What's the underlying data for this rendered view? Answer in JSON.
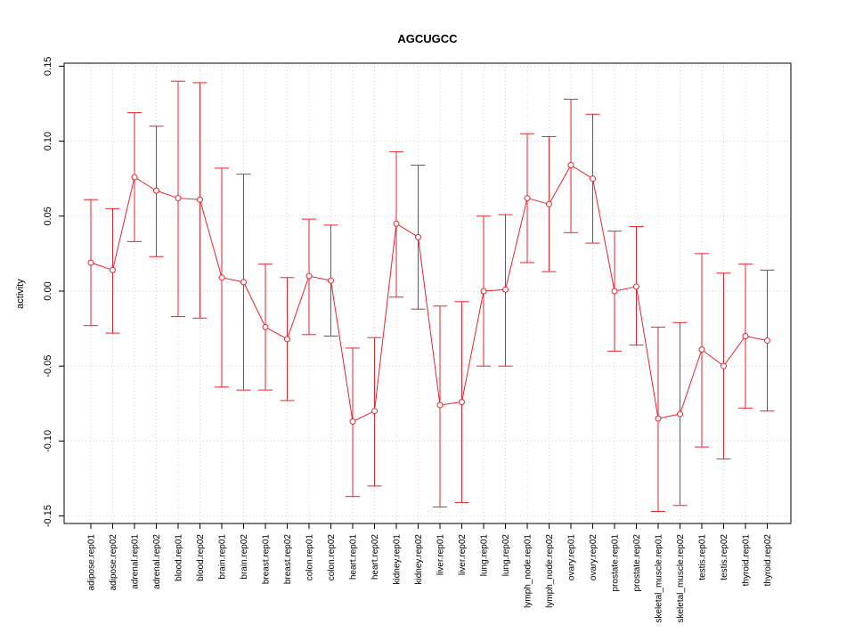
{
  "chart_data": {
    "type": "line",
    "title": "AGCUGCC",
    "xlabel": "",
    "ylabel": "activity",
    "ylim": [
      -0.155,
      0.152
    ],
    "yticks": [
      -0.15,
      -0.1,
      -0.05,
      0.0,
      0.05,
      0.1,
      0.15
    ],
    "ytick_labels": [
      "-0.15",
      "-0.10",
      "-0.05",
      "0.00",
      "0.05",
      "0.10",
      "0.15"
    ],
    "grid": true,
    "color": "#e8232b",
    "categories": [
      "adipose.rep01",
      "adipose.rep02",
      "adrenal.rep01",
      "adrenal.rep02",
      "blood.rep01",
      "blood.rep02",
      "brain.rep01",
      "brain.rep02",
      "breast.rep01",
      "breast.rep02",
      "colon.rep01",
      "colon.rep02",
      "heart.rep01",
      "heart.rep02",
      "kidney.rep01",
      "kidney.rep02",
      "liver.rep01",
      "liver.rep02",
      "lung.rep01",
      "lung.rep02",
      "lymph_node.rep01",
      "lymph_node.rep02",
      "ovary.rep01",
      "ovary.rep02",
      "prostate.rep01",
      "prostate.rep02",
      "skeletal_muscle.rep01",
      "skeletal_muscle.rep02",
      "testis.rep01",
      "testis.rep02",
      "thyroid.rep01",
      "thyroid.rep02"
    ],
    "values": [
      0.019,
      0.014,
      0.076,
      0.067,
      0.062,
      0.061,
      0.009,
      0.006,
      -0.024,
      -0.032,
      0.01,
      0.007,
      -0.087,
      -0.08,
      0.045,
      0.036,
      -0.076,
      -0.074,
      0.0,
      0.001,
      0.062,
      0.058,
      0.084,
      0.075,
      0.0,
      0.003,
      -0.085,
      -0.082,
      -0.039,
      -0.05,
      -0.03,
      -0.033
    ],
    "upper": [
      0.061,
      0.055,
      0.119,
      0.11,
      0.14,
      0.139,
      0.082,
      0.078,
      0.018,
      0.009,
      0.048,
      0.044,
      -0.038,
      -0.031,
      0.093,
      0.084,
      -0.01,
      -0.007,
      0.05,
      0.051,
      0.105,
      0.103,
      0.128,
      0.118,
      0.04,
      0.043,
      -0.024,
      -0.021,
      0.025,
      0.012,
      0.018,
      0.014
    ],
    "lower": [
      -0.023,
      -0.028,
      0.033,
      0.023,
      -0.017,
      -0.018,
      -0.064,
      -0.066,
      -0.066,
      -0.073,
      -0.029,
      -0.03,
      -0.137,
      -0.13,
      -0.004,
      -0.012,
      -0.144,
      -0.141,
      -0.05,
      -0.05,
      0.019,
      0.013,
      0.039,
      0.032,
      -0.04,
      -0.036,
      -0.147,
      -0.143,
      -0.104,
      -0.112,
      -0.078,
      -0.08
    ]
  }
}
